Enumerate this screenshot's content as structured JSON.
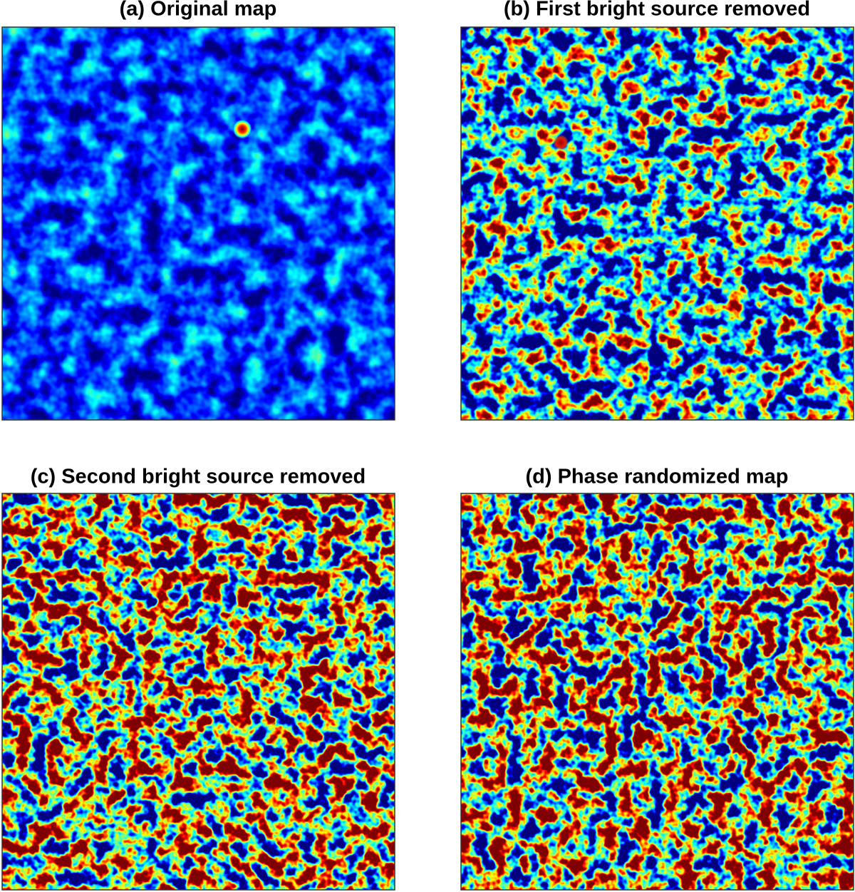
{
  "panels": [
    {
      "title": "(a) Original map"
    },
    {
      "title": "(b) First bright source removed"
    },
    {
      "title": "(c) Second bright source removed"
    },
    {
      "title": "(d) Phase randomized map"
    }
  ]
}
